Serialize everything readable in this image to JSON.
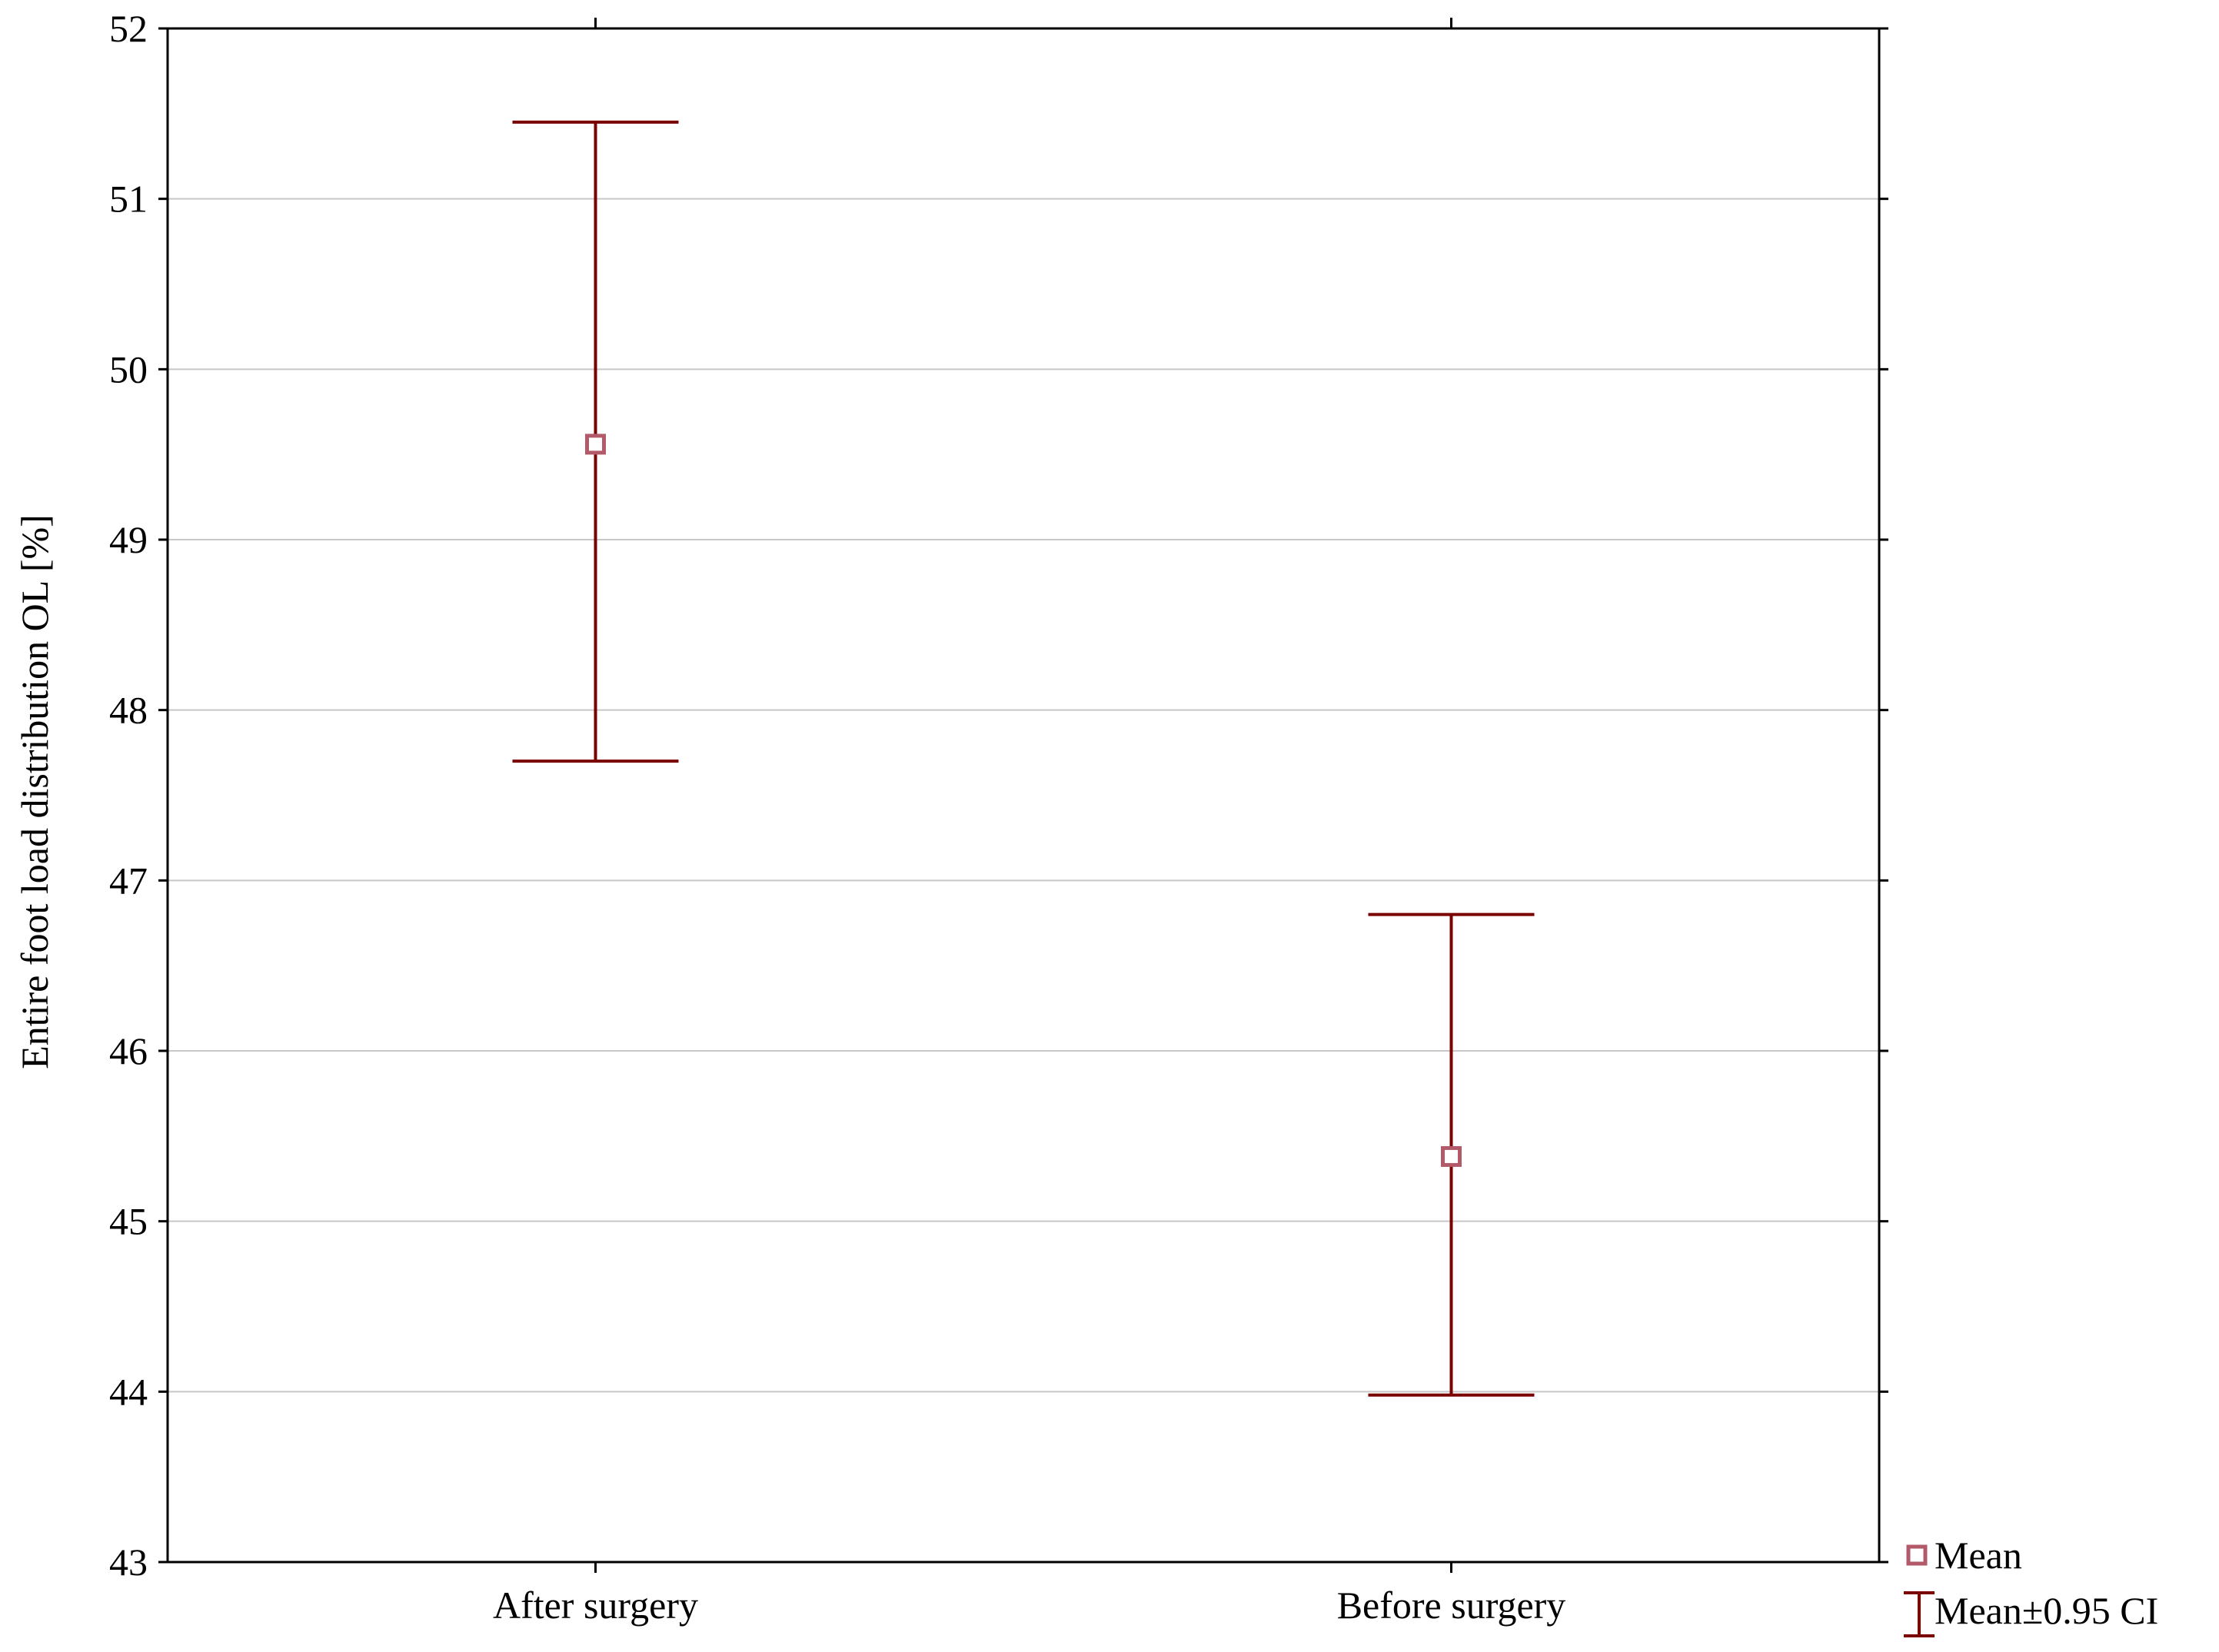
{
  "chart_data": {
    "type": "scatter",
    "title": "",
    "ylabel": "Entire foot load distribution OL [%]",
    "xlabel": "",
    "categories": [
      "After surgery",
      "Before surgery"
    ],
    "ylim": [
      43,
      52
    ],
    "yticks": [
      43,
      44,
      45,
      46,
      47,
      48,
      49,
      50,
      51,
      52
    ],
    "grid": true,
    "series": [
      {
        "name": "Mean",
        "values": [
          49.56,
          45.38
        ],
        "ci_lower": [
          47.7,
          43.98
        ],
        "ci_upper": [
          51.45,
          46.8
        ]
      }
    ],
    "legend": {
      "position": "bottom-right",
      "entries": [
        "Mean",
        "Mean±0.95 CI"
      ]
    },
    "colors": {
      "error_bar": "#7a0000",
      "marker": "#b35a6a",
      "grid": "#c8c8c8",
      "axis": "#000000"
    }
  }
}
